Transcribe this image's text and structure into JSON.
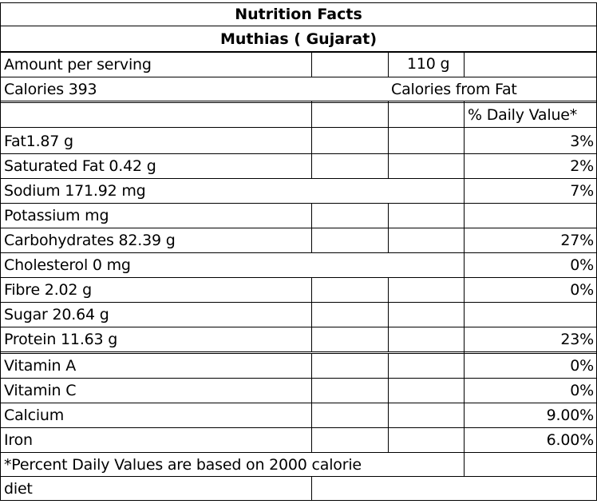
{
  "title": "Nutrition Facts",
  "subtitle": "Muthias ( Gujarat)",
  "serving": {
    "label": "Amount per serving",
    "value": "110 g"
  },
  "calories": {
    "label": "Calories 393",
    "from_fat": "Calories from Fat"
  },
  "daily_value_header": "% Daily Value*",
  "nutrients": [
    {
      "label": "Fat1.87 g",
      "dv": "3%"
    },
    {
      "label": "Saturated Fat 0.42 g",
      "dv": "2%"
    },
    {
      "label": "Sodium 171.92 mg",
      "dv": "7%"
    },
    {
      "label": "Potassium  mg",
      "dv": ""
    },
    {
      "label": "Carbohydrates 82.39 g",
      "dv": "27%"
    },
    {
      "label": "Cholesterol 0 mg",
      "dv": "0%"
    },
    {
      "label": "Fibre 2.02 g",
      "dv": "0%"
    },
    {
      "label": "Sugar 20.64 g",
      "dv": ""
    },
    {
      "label": "Protein 11.63  g",
      "dv": "23%"
    },
    {
      "label": "Vitamin A",
      "dv": "0%"
    },
    {
      "label": "Vitamin C",
      "dv": "0%"
    },
    {
      "label": "Calcium",
      "dv": "9.00%"
    },
    {
      "label": "Iron",
      "dv": "6.00%"
    }
  ],
  "footnote": {
    "line1": "*Percent Daily Values are based on 2000 calorie",
    "line2": "diet"
  }
}
